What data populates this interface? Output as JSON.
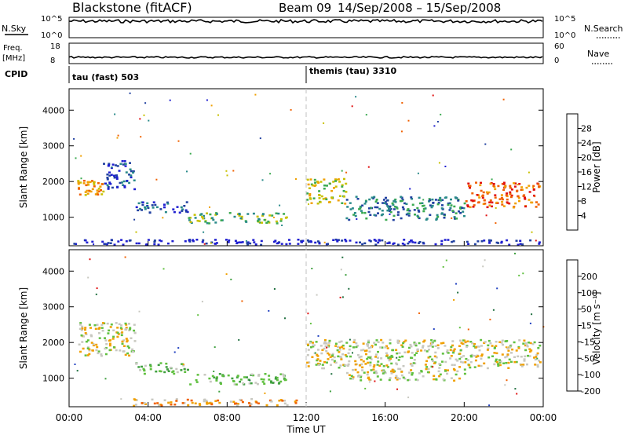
{
  "header": {
    "radar": "Blackstone (fitACF)",
    "beam": "Beam 09",
    "date_range": "14/Sep/2008 – 15/Sep/2008"
  },
  "top_panels": {
    "nsky_label": "N.Sky",
    "nsearch_label": "N.Search",
    "nsky_ticks": [
      "10^5",
      "10^0"
    ],
    "nsearch_ticks": [
      "10^5",
      "10^0"
    ],
    "freq_label_1": "Freq.",
    "freq_label_2": "[MHz]",
    "freq_ticks": [
      "18",
      "8"
    ],
    "nave_label": "Nave",
    "nave_ticks": [
      "60",
      "0"
    ],
    "cpid_label": "CPID",
    "cpid_segments": [
      "tau (fast) 503",
      "themis (tau) 3310"
    ]
  },
  "chart_data": [
    {
      "type": "heatmap",
      "title": "Power",
      "ylabel": "Slant Range [km]",
      "xlabel": "",
      "y_ticks": [
        "1000",
        "2000",
        "3000",
        "4000"
      ],
      "x_ticks": [],
      "ylim": [
        200,
        4600
      ],
      "xlim_hours": [
        0,
        24
      ],
      "colorbar": {
        "label": "Power [dB]",
        "ticks": [
          "4",
          "8",
          "12",
          "16",
          "20",
          "24",
          "28"
        ],
        "colors": [
          "#1f1fd0",
          "#2040a0",
          "#2a8a8a",
          "#3aaa50",
          "#c8c000",
          "#f0a000",
          "#f06000",
          "#e01010"
        ]
      },
      "echo_regions": [
        {
          "t0": 0.4,
          "t1": 1.7,
          "r0": 1650,
          "r1": 2050,
          "level": 5
        },
        {
          "t0": 1.7,
          "t1": 3.3,
          "r0": 1800,
          "r1": 2600,
          "level": 1
        },
        {
          "t0": 3.3,
          "t1": 6.0,
          "r0": 1150,
          "r1": 1450,
          "level": 1
        },
        {
          "t0": 6.0,
          "t1": 11.0,
          "r0": 850,
          "r1": 1150,
          "level": 3
        },
        {
          "t0": 12.0,
          "t1": 14.0,
          "r0": 1400,
          "r1": 2100,
          "level": 4
        },
        {
          "t0": 14.0,
          "t1": 20.0,
          "r0": 950,
          "r1": 1600,
          "level": 2
        },
        {
          "t0": 20.0,
          "t1": 23.8,
          "r0": 1300,
          "r1": 2000,
          "level": 6
        },
        {
          "t0": 0.0,
          "t1": 24.0,
          "r0": 250,
          "r1": 400,
          "level": 0
        }
      ]
    },
    {
      "type": "heatmap",
      "title": "Velocity",
      "ylabel": "Slant Range [km]",
      "xlabel": "Time UT",
      "y_ticks": [
        "1000",
        "2000",
        "3000",
        "4000"
      ],
      "x_ticks": [
        "00:00",
        "04:00",
        "08:00",
        "12:00",
        "16:00",
        "20:00",
        "00:00"
      ],
      "ylim": [
        200,
        4600
      ],
      "xlim_hours": [
        0,
        24
      ],
      "colorbar": {
        "label": "Velocity [m s⁻¹]",
        "ticks": [
          "200",
          "100",
          "50",
          "15",
          "-15",
          "-50",
          "-100",
          "-200"
        ],
        "colors": [
          "#2040c0",
          "#207040",
          "#40a040",
          "#60c040",
          "#c8c8c0",
          "#f0a000",
          "#f06000",
          "#e01010"
        ]
      },
      "echo_regions": [
        {
          "t0": 0.4,
          "t1": 3.3,
          "r0": 1650,
          "r1": 2600,
          "level": 4
        },
        {
          "t0": 3.3,
          "t1": 6.0,
          "r0": 1150,
          "r1": 1450,
          "level": 3
        },
        {
          "t0": 6.0,
          "t1": 11.0,
          "r0": 850,
          "r1": 1150,
          "level": 3
        },
        {
          "t0": 12.0,
          "t1": 23.8,
          "r0": 1300,
          "r1": 2100,
          "level": 4
        },
        {
          "t0": 14.0,
          "t1": 20.0,
          "r0": 950,
          "r1": 1300,
          "level": 4
        },
        {
          "t0": 3.0,
          "t1": 11.5,
          "r0": 250,
          "r1": 450,
          "level": 5
        }
      ]
    }
  ],
  "colors": {
    "frame": "#000000",
    "noon_marker": "#c0c0c0",
    "ground_scatter": "#c8c8c0"
  }
}
